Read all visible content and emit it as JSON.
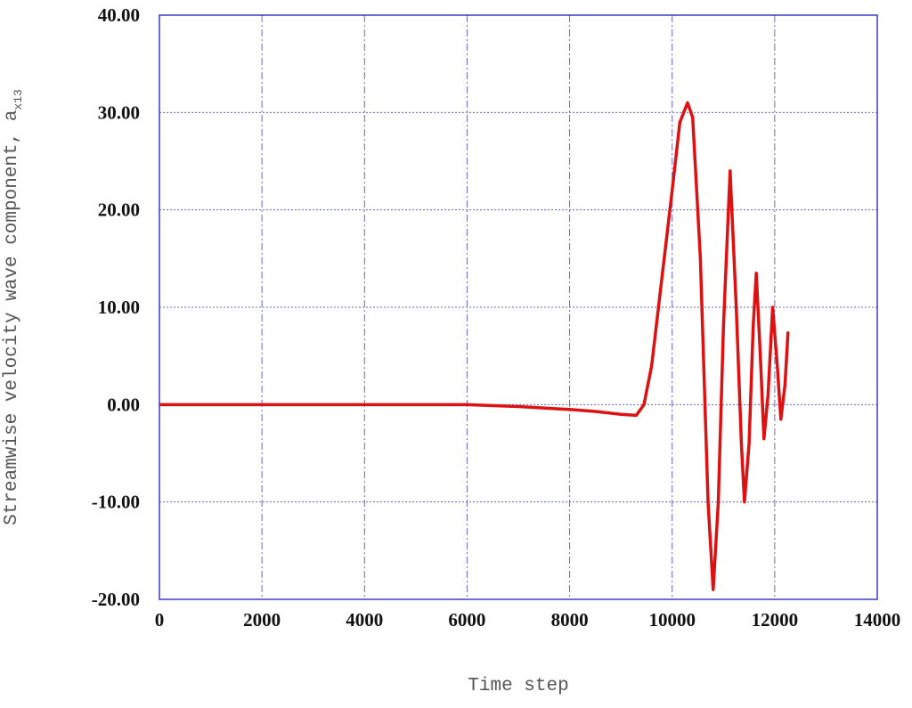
{
  "chart_data": {
    "type": "line",
    "x_label": "Time step",
    "y_label": "Streamwise velocity wave component, a",
    "y_label_subscript": "x13",
    "x": [
      0,
      2000,
      4000,
      6000,
      7000,
      8000,
      8500,
      9000,
      9300,
      9450,
      9600,
      9800,
      10000,
      10150,
      10300,
      10400,
      10550,
      10700,
      10800,
      10900,
      11000,
      11130,
      11250,
      11350,
      11410,
      11500,
      11580,
      11640,
      11720,
      11790,
      11870,
      11960,
      12050,
      12120,
      12200,
      12260
    ],
    "series": [
      {
        "name": "a_x13",
        "color": "#dd1111",
        "values": [
          0,
          0,
          0,
          0,
          -0.2,
          -0.5,
          -0.7,
          -1.0,
          -1.1,
          0,
          4,
          13,
          22,
          29,
          31,
          29.5,
          15,
          -10,
          -19,
          -10,
          8,
          24,
          10,
          -4,
          -10,
          -4,
          8,
          13.5,
          5,
          -3.5,
          1,
          10,
          4,
          -1.5,
          2,
          7.5
        ]
      }
    ],
    "xlim": [
      0,
      14000
    ],
    "xticks": [
      0,
      2000,
      4000,
      6000,
      8000,
      10000,
      12000,
      14000
    ],
    "ylim": [
      -20,
      40
    ],
    "yticks": [
      {
        "value": -20,
        "label": "-20.00"
      },
      {
        "value": -10,
        "label": "-10.00"
      },
      {
        "value": 0,
        "label": "0.00"
      },
      {
        "value": 10,
        "label": "10.00"
      },
      {
        "value": 20,
        "label": "20.00"
      },
      {
        "value": 30,
        "label": "30.00"
      },
      {
        "value": 40,
        "label": "40.00"
      }
    ],
    "grid": true
  }
}
